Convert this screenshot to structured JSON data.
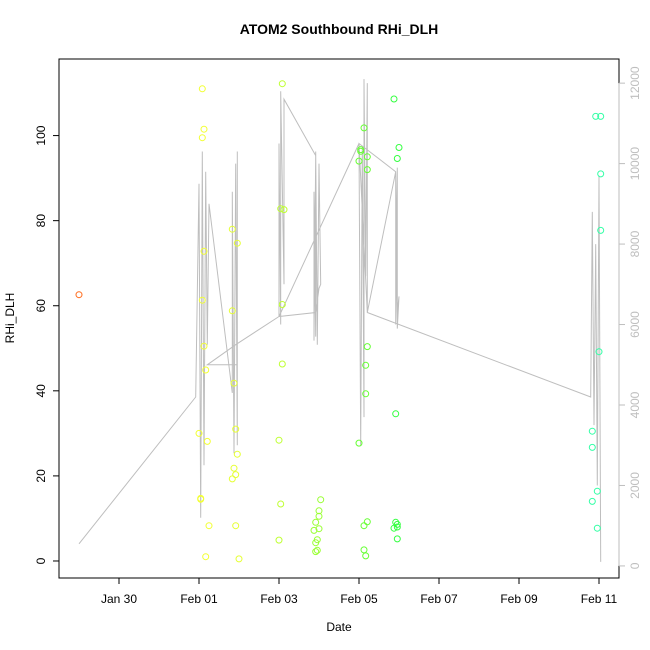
{
  "chart_data": {
    "type": "scatter",
    "title": "ATOM2 Southbound RHi_DLH",
    "xlabel": "Date",
    "ylabel": "RHi_DLH",
    "x_axis": {
      "range": [
        "2014-01-28T12:00",
        "2014-02-11T12:00"
      ],
      "ticks": [
        {
          "date": "2014-01-30T00:00",
          "label": "Jan 30"
        },
        {
          "date": "2014-02-01T00:00",
          "label": "Feb 01"
        },
        {
          "date": "2014-02-03T00:00",
          "label": "Feb 03"
        },
        {
          "date": "2014-02-05T00:00",
          "label": "Feb 05"
        },
        {
          "date": "2014-02-07T00:00",
          "label": "Feb 07"
        },
        {
          "date": "2014-02-09T00:00",
          "label": "Feb 09"
        },
        {
          "date": "2014-02-11T00:00",
          "label": "Feb 11"
        }
      ]
    },
    "y_axis_left": {
      "range": [
        -4,
        118
      ],
      "ticks": [
        0,
        20,
        40,
        60,
        80,
        100
      ]
    },
    "y_axis_right": {
      "range": [
        -300,
        12600
      ],
      "ticks": [
        0,
        2000,
        4000,
        6000,
        8000,
        10000,
        12000
      ],
      "color": "#bebebe"
    },
    "colors": {
      "line": "#bebebe"
    },
    "points": [
      {
        "x": "2014-01-29T00:00",
        "y": 62.6,
        "color": "#ff6a1a"
      },
      {
        "x": "2014-02-01T00:00",
        "y": 30.0,
        "color": "#f2ff33"
      },
      {
        "x": "2014-02-01T01:00",
        "y": 14.7,
        "color": "#f2ff33"
      },
      {
        "x": "2014-02-01T02:00",
        "y": 111.0,
        "color": "#f2ff33"
      },
      {
        "x": "2014-02-01T02:00",
        "y": 99.5,
        "color": "#f2ff33"
      },
      {
        "x": "2014-02-01T03:00",
        "y": 101.5,
        "color": "#f2ff33"
      },
      {
        "x": "2014-02-01T03:00",
        "y": 72.8,
        "color": "#f2ff33"
      },
      {
        "x": "2014-02-01T02:00",
        "y": 61.3,
        "color": "#f2ff33"
      },
      {
        "x": "2014-02-01T03:00",
        "y": 50.5,
        "color": "#f2ff33"
      },
      {
        "x": "2014-02-01T04:00",
        "y": 44.9,
        "color": "#f2ff33"
      },
      {
        "x": "2014-02-01T05:00",
        "y": 28.1,
        "color": "#f2ff33"
      },
      {
        "x": "2014-02-01T01:00",
        "y": 14.5,
        "color": "#f2ff33"
      },
      {
        "x": "2014-02-01T06:00",
        "y": 8.3,
        "color": "#f2ff33"
      },
      {
        "x": "2014-02-01T04:00",
        "y": 1.0,
        "color": "#f2ff33"
      },
      {
        "x": "2014-02-01T20:00",
        "y": 78.0,
        "color": "#e6ff33"
      },
      {
        "x": "2014-02-01T23:00",
        "y": 74.7,
        "color": "#e6ff33"
      },
      {
        "x": "2014-02-01T20:00",
        "y": 58.8,
        "color": "#e6ff33"
      },
      {
        "x": "2014-02-01T21:00",
        "y": 41.8,
        "color": "#e6ff33"
      },
      {
        "x": "2014-02-01T22:00",
        "y": 31.0,
        "color": "#e6ff33"
      },
      {
        "x": "2014-02-01T23:00",
        "y": 25.1,
        "color": "#e6ff33"
      },
      {
        "x": "2014-02-01T21:00",
        "y": 21.8,
        "color": "#e6ff33"
      },
      {
        "x": "2014-02-01T22:00",
        "y": 20.3,
        "color": "#e6ff33"
      },
      {
        "x": "2014-02-01T20:00",
        "y": 19.3,
        "color": "#e6ff33"
      },
      {
        "x": "2014-02-01T22:00",
        "y": 8.3,
        "color": "#e6ff33"
      },
      {
        "x": "2014-02-02T00:00",
        "y": 0.5,
        "color": "#e6ff33"
      },
      {
        "x": "2014-02-03T02:00",
        "y": 112.2,
        "color": "#bfff33"
      },
      {
        "x": "2014-02-03T01:00",
        "y": 82.8,
        "color": "#bfff33"
      },
      {
        "x": "2014-02-03T03:00",
        "y": 82.6,
        "color": "#bfff33"
      },
      {
        "x": "2014-02-03T02:00",
        "y": 60.3,
        "color": "#bfff33"
      },
      {
        "x": "2014-02-03T02:00",
        "y": 46.3,
        "color": "#bfff33"
      },
      {
        "x": "2014-02-03T00:00",
        "y": 28.4,
        "color": "#bfff33"
      },
      {
        "x": "2014-02-03T01:00",
        "y": 13.4,
        "color": "#bfff33"
      },
      {
        "x": "2014-02-03T00:00",
        "y": 4.9,
        "color": "#bfff33"
      },
      {
        "x": "2014-02-03T22:00",
        "y": 9.1,
        "color": "#99ff33"
      },
      {
        "x": "2014-02-03T21:00",
        "y": 7.2,
        "color": "#99ff33"
      },
      {
        "x": "2014-02-03T22:00",
        "y": 4.3,
        "color": "#99ff33"
      },
      {
        "x": "2014-02-03T23:00",
        "y": 5.0,
        "color": "#99ff33"
      },
      {
        "x": "2014-02-03T22:00",
        "y": 2.2,
        "color": "#99ff33"
      },
      {
        "x": "2014-02-03T23:00",
        "y": 2.5,
        "color": "#99ff33"
      },
      {
        "x": "2014-02-04T00:00",
        "y": 10.5,
        "color": "#99ff33"
      },
      {
        "x": "2014-02-04T00:00",
        "y": 11.8,
        "color": "#99ff33"
      },
      {
        "x": "2014-02-04T01:00",
        "y": 14.4,
        "color": "#99ff33"
      },
      {
        "x": "2014-02-04T00:00",
        "y": 7.6,
        "color": "#99ff33"
      },
      {
        "x": "2014-02-05T01:00",
        "y": 96.7,
        "color": "#66ff33"
      },
      {
        "x": "2014-02-05T01:00",
        "y": 96.3,
        "color": "#66ff33"
      },
      {
        "x": "2014-02-05T00:00",
        "y": 94.0,
        "color": "#66ff33"
      },
      {
        "x": "2014-02-05T03:00",
        "y": 101.8,
        "color": "#66ff33"
      },
      {
        "x": "2014-02-05T05:00",
        "y": 95.0,
        "color": "#66ff33"
      },
      {
        "x": "2014-02-05T05:00",
        "y": 92.0,
        "color": "#66ff33"
      },
      {
        "x": "2014-02-05T05:00",
        "y": 50.4,
        "color": "#66ff33"
      },
      {
        "x": "2014-02-05T04:00",
        "y": 46.0,
        "color": "#66ff33"
      },
      {
        "x": "2014-02-05T04:00",
        "y": 39.3,
        "color": "#66ff33"
      },
      {
        "x": "2014-02-05T00:00",
        "y": 27.7,
        "color": "#66ff33"
      },
      {
        "x": "2014-02-05T05:00",
        "y": 9.2,
        "color": "#66ff33"
      },
      {
        "x": "2014-02-05T03:00",
        "y": 8.3,
        "color": "#66ff33"
      },
      {
        "x": "2014-02-05T03:00",
        "y": 2.6,
        "color": "#66ff33"
      },
      {
        "x": "2014-02-05T04:00",
        "y": 1.2,
        "color": "#66ff33"
      },
      {
        "x": "2014-02-05T21:00",
        "y": 108.6,
        "color": "#33ff40"
      },
      {
        "x": "2014-02-06T00:00",
        "y": 97.2,
        "color": "#33ff40"
      },
      {
        "x": "2014-02-05T23:00",
        "y": 94.6,
        "color": "#33ff40"
      },
      {
        "x": "2014-02-05T22:00",
        "y": 34.6,
        "color": "#33ff40"
      },
      {
        "x": "2014-02-05T22:00",
        "y": 9.1,
        "color": "#33ff40"
      },
      {
        "x": "2014-02-05T23:00",
        "y": 8.6,
        "color": "#33ff40"
      },
      {
        "x": "2014-02-05T21:00",
        "y": 7.7,
        "color": "#33ff40"
      },
      {
        "x": "2014-02-05T23:00",
        "y": 8.0,
        "color": "#33ff40"
      },
      {
        "x": "2014-02-05T23:00",
        "y": 5.2,
        "color": "#33ff40"
      },
      {
        "x": "2014-02-10T22:00",
        "y": 104.5,
        "color": "#33ffa6"
      },
      {
        "x": "2014-02-11T01:00",
        "y": 104.5,
        "color": "#33ffa6"
      },
      {
        "x": "2014-02-11T01:00",
        "y": 91.0,
        "color": "#33ffa6"
      },
      {
        "x": "2014-02-11T01:00",
        "y": 77.7,
        "color": "#33ffa6"
      },
      {
        "x": "2014-02-11T00:00",
        "y": 49.2,
        "color": "#33ffa6"
      },
      {
        "x": "2014-02-10T20:00",
        "y": 30.5,
        "color": "#33ffa6"
      },
      {
        "x": "2014-02-10T20:00",
        "y": 26.7,
        "color": "#33ffa6"
      },
      {
        "x": "2014-02-10T23:00",
        "y": 16.4,
        "color": "#33ffa6"
      },
      {
        "x": "2014-02-10T20:00",
        "y": 14.0,
        "color": "#33ffa6"
      },
      {
        "x": "2014-02-10T23:00",
        "y": 7.7,
        "color": "#33ffa6"
      }
    ],
    "altitude_line": [
      [
        "2014-01-29T00:00",
        550
      ],
      [
        "2014-01-31T22:00",
        4200
      ],
      [
        "2014-02-01T00:00",
        9500
      ],
      [
        "2014-02-01T01:00",
        1200
      ],
      [
        "2014-02-01T02:00",
        10300
      ],
      [
        "2014-02-01T03:00",
        2500
      ],
      [
        "2014-02-01T04:00",
        9800
      ],
      [
        "2014-02-01T05:00",
        5500
      ],
      [
        "2014-02-01T06:00",
        9000
      ],
      [
        "2014-02-01T20:00",
        4300
      ],
      [
        "2014-02-01T20:00",
        9300
      ],
      [
        "2014-02-01T21:00",
        2800
      ],
      [
        "2014-02-01T22:00",
        10000
      ],
      [
        "2014-02-01T23:00",
        3000
      ],
      [
        "2014-02-01T23:00",
        10300
      ],
      [
        "2014-02-01T23:00",
        5000
      ],
      [
        "2014-02-01T05:00",
        5000
      ],
      [
        "2014-02-01T22:00",
        5500
      ],
      [
        "2014-02-03T00:00",
        6200
      ],
      [
        "2014-02-03T00:00",
        10500
      ],
      [
        "2014-02-03T01:00",
        6000
      ],
      [
        "2014-02-03T01:00",
        11800
      ],
      [
        "2014-02-03T03:00",
        7000
      ],
      [
        "2014-02-03T03:00",
        11600
      ],
      [
        "2014-02-03T22:00",
        10200
      ],
      [
        "2014-02-03T21:00",
        5600
      ],
      [
        "2014-02-03T21:00",
        9300
      ],
      [
        "2014-02-03T22:00",
        5700
      ],
      [
        "2014-02-03T22:00",
        10300
      ],
      [
        "2014-02-03T23:00",
        5500
      ],
      [
        "2014-02-04T00:00",
        10000
      ],
      [
        "2014-02-04T01:00",
        7000
      ],
      [
        "2014-02-04T00:00",
        6900
      ],
      [
        "2014-02-03T22:00",
        6300
      ],
      [
        "2014-02-03T00:00",
        6200
      ],
      [
        "2014-02-05T00:00",
        10500
      ],
      [
        "2014-02-05T01:00",
        3000
      ],
      [
        "2014-02-05T02:00",
        10400
      ],
      [
        "2014-02-05T03:00",
        3700
      ],
      [
        "2014-02-05T03:00",
        12100
      ],
      [
        "2014-02-05T04:00",
        7200
      ],
      [
        "2014-02-05T05:00",
        12000
      ],
      [
        "2014-02-05T05:00",
        6300
      ],
      [
        "2014-02-05T22:00",
        9800
      ],
      [
        "2014-02-05T22:00",
        6000
      ],
      [
        "2014-02-05T23:00",
        9900
      ],
      [
        "2014-02-05T23:00",
        5900
      ],
      [
        "2014-02-06T00:00",
        6700
      ],
      [
        "2014-02-05T23:00",
        6300
      ],
      [
        "2014-02-05T23:00",
        5900
      ],
      [
        "2014-02-05T22:00",
        9800
      ],
      [
        "2014-02-05T00:00",
        10500
      ],
      [
        "2014-02-05T05:00",
        6300
      ],
      [
        "2014-02-10T19:00",
        4200
      ],
      [
        "2014-02-10T20:00",
        8800
      ],
      [
        "2014-02-10T21:00",
        3500
      ],
      [
        "2014-02-10T22:00",
        8000
      ],
      [
        "2014-02-10T23:00",
        2000
      ],
      [
        "2014-02-11T00:00",
        9700
      ],
      [
        "2014-02-11T01:00",
        100
      ]
    ]
  }
}
